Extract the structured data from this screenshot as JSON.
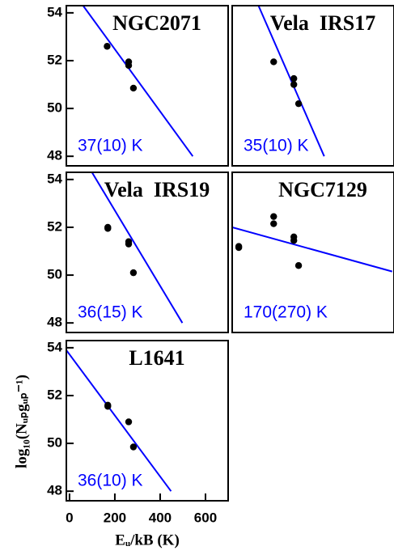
{
  "chart_data": [
    {
      "type": "scatter",
      "title": "NGC2071",
      "annotation": "37(10) K",
      "color": "#0000ff",
      "x": [
        166,
        261,
        261,
        282
      ],
      "y": [
        52.6,
        51.95,
        51.8,
        50.85
      ],
      "fit": {
        "x": [
          60,
          544
        ],
        "y": [
          54.3,
          48
        ]
      },
      "xlim": [
        -14,
        700
      ],
      "ylim": [
        47.6,
        54.3
      ],
      "yticks": [
        48,
        50,
        52,
        54
      ]
    },
    {
      "type": "scatter",
      "title": "Vela  IRS17",
      "annotation": "35(10) K",
      "color": "#0000ff",
      "x": [
        169,
        258,
        258,
        279
      ],
      "y": [
        51.95,
        51.25,
        51.0,
        50.2
      ],
      "fit": {
        "x": [
          102,
          392
        ],
        "y": [
          54.3,
          48
        ]
      },
      "xlim": [
        -14,
        700
      ],
      "ylim": [
        47.6,
        54.3
      ]
    },
    {
      "type": "scatter",
      "title": "Vela  IRS19",
      "annotation": "36(15) K",
      "color": "#0000ff",
      "x": [
        169,
        169,
        261,
        261,
        282
      ],
      "y": [
        52.0,
        51.95,
        51.4,
        51.3,
        50.1
      ],
      "fit": {
        "x": [
          99,
          498
        ],
        "y": [
          54.3,
          48
        ]
      },
      "xlim": [
        -14,
        700
      ],
      "ylim": [
        47.6,
        54.3
      ],
      "yticks": [
        48,
        50,
        52,
        54
      ]
    },
    {
      "type": "scatter",
      "title": "NGC7129",
      "annotation": "170(270) K",
      "color": "#0000ff",
      "x": [
        15,
        15,
        169,
        169,
        258,
        258,
        279
      ],
      "y": [
        51.2,
        51.15,
        52.45,
        52.15,
        51.6,
        51.45,
        50.4
      ],
      "fit": {
        "x": [
          -14,
          692
        ],
        "y": [
          52.0,
          50.15
        ]
      },
      "xlim": [
        -14,
        700
      ],
      "ylim": [
        47.6,
        54.3
      ]
    },
    {
      "type": "scatter",
      "title": "L1641",
      "annotation": "36(10) K",
      "color": "#0000ff",
      "x": [
        169,
        169,
        261,
        282
      ],
      "y": [
        51.6,
        51.55,
        50.9,
        49.85
      ],
      "fit": {
        "x": [
          -14,
          448
        ],
        "y": [
          53.9,
          48
        ]
      },
      "xlim": [
        -14,
        700
      ],
      "ylim": [
        47.6,
        54.3
      ],
      "yticks": [
        48,
        50,
        52,
        54
      ],
      "xticks": [
        0,
        200,
        400,
        600
      ],
      "xlabel": "Eᵤ/kB (K)",
      "ylabel": "log₁₀(Nᵤₚgᵤₚ⁻¹)"
    }
  ]
}
